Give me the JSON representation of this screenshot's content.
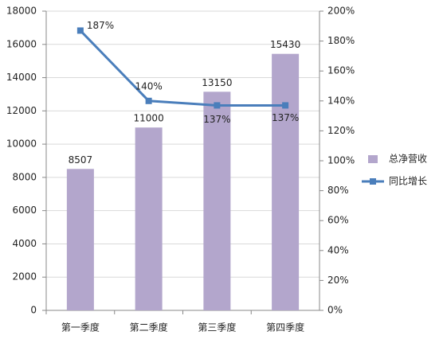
{
  "chart_data": {
    "type": "bar-line",
    "categories": [
      "第一季度",
      "第二季度",
      "第三季度",
      "第四季度"
    ],
    "series": [
      {
        "name": "总净营收",
        "color": "#b3a6cc",
        "type": "bar",
        "values": [
          8507,
          11000,
          13150,
          15430
        ]
      },
      {
        "name": "同比增长",
        "color": "#4a7ebb",
        "type": "line",
        "axis": "y2",
        "values": [
          187,
          140,
          137,
          137
        ],
        "value_labels": [
          "187%",
          "140%",
          "137%",
          "137%"
        ]
      }
    ],
    "ylim": [
      0,
      18000
    ],
    "yticks": [
      0,
      2000,
      4000,
      6000,
      8000,
      10000,
      12000,
      14000,
      16000,
      18000
    ],
    "y2lim": [
      0,
      200
    ],
    "y2ticks": [
      {
        "value": 0,
        "label": "0%"
      },
      {
        "value": 20,
        "label": "20%"
      },
      {
        "value": 40,
        "label": "40%"
      },
      {
        "value": 60,
        "label": "60%"
      },
      {
        "value": 80,
        "label": "80%"
      },
      {
        "value": 100,
        "label": "100%"
      },
      {
        "value": 120,
        "label": "120%"
      },
      {
        "value": 140,
        "label": "140%"
      },
      {
        "value": 160,
        "label": "160%"
      },
      {
        "value": 180,
        "label": "180%"
      },
      {
        "value": 200,
        "label": "200%"
      }
    ],
    "grid": true,
    "legend": "right"
  }
}
